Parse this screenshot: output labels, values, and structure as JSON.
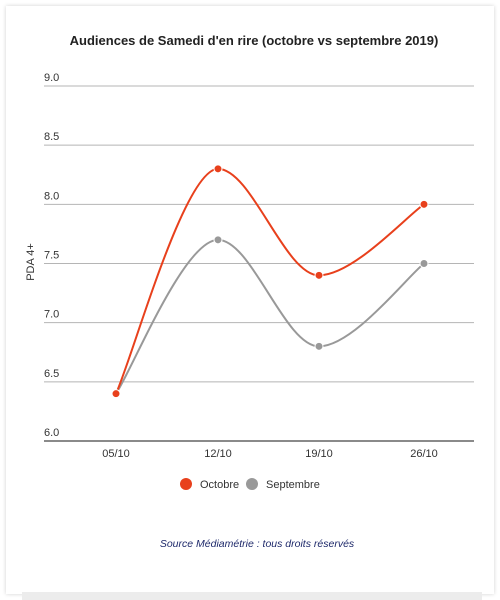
{
  "chart_data": {
    "type": "line",
    "title": "Audiences de Samedi d'en rire (octobre vs septembre 2019)",
    "xlabel": "",
    "ylabel": "PDA 4+",
    "categories": [
      "05/10",
      "12/10",
      "19/10",
      "26/10"
    ],
    "y_ticks": [
      "9.0",
      "8.5",
      "8.0",
      "7.5",
      "7.0",
      "6.5",
      "6.0"
    ],
    "ylim": [
      6.0,
      9.0
    ],
    "grid": true,
    "legend_position": "bottom",
    "series": [
      {
        "name": "Octobre",
        "color": "#e8401c",
        "values": [
          6.4,
          8.3,
          7.4,
          8.0
        ]
      },
      {
        "name": "Septembre",
        "color": "#999999",
        "values": [
          6.4,
          7.7,
          6.8,
          7.5
        ]
      }
    ],
    "source": "Source Médiamétrie : tous droits réservés"
  }
}
